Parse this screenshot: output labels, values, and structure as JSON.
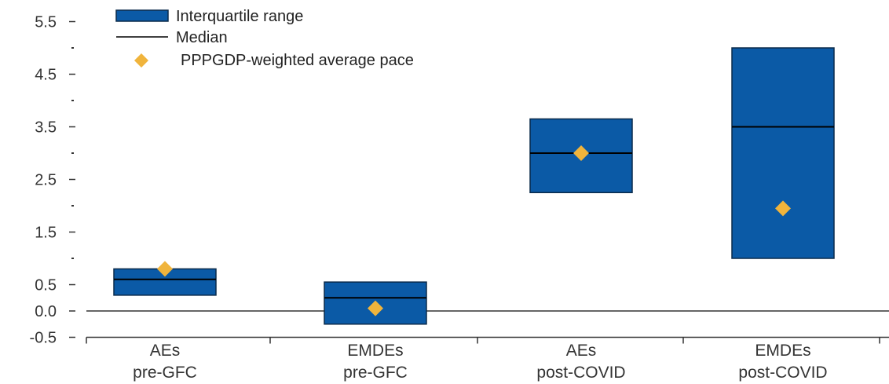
{
  "chart_data": {
    "type": "box",
    "categories": [
      [
        "AEs",
        "pre-GFC"
      ],
      [
        "EMDEs",
        "pre-GFC"
      ],
      [
        "AEs",
        "post-COVID"
      ],
      [
        "EMDEs",
        "post-COVID"
      ]
    ],
    "series": [
      {
        "name": "Interquartile range",
        "low": [
          0.3,
          -0.25,
          2.25,
          1.0
        ],
        "high": [
          0.8,
          0.55,
          3.65,
          5.0
        ]
      },
      {
        "name": "Median",
        "values": [
          0.6,
          0.25,
          3.0,
          3.5
        ]
      },
      {
        "name": "PPPGDP-weighted average pace",
        "values": [
          0.8,
          0.05,
          3.0,
          1.95
        ]
      }
    ],
    "y_ticks": [
      "5.5",
      "4.5",
      "3.5",
      "2.5",
      "1.5",
      "0.5",
      "0.0",
      "-0.5"
    ],
    "ylim": [
      -0.5,
      5.5
    ],
    "legend_position": "top-left",
    "colors": {
      "box": "#0b5aa6",
      "box_border": "#0a2a4a",
      "median": "#000000",
      "marker": "#f0b43c"
    }
  }
}
